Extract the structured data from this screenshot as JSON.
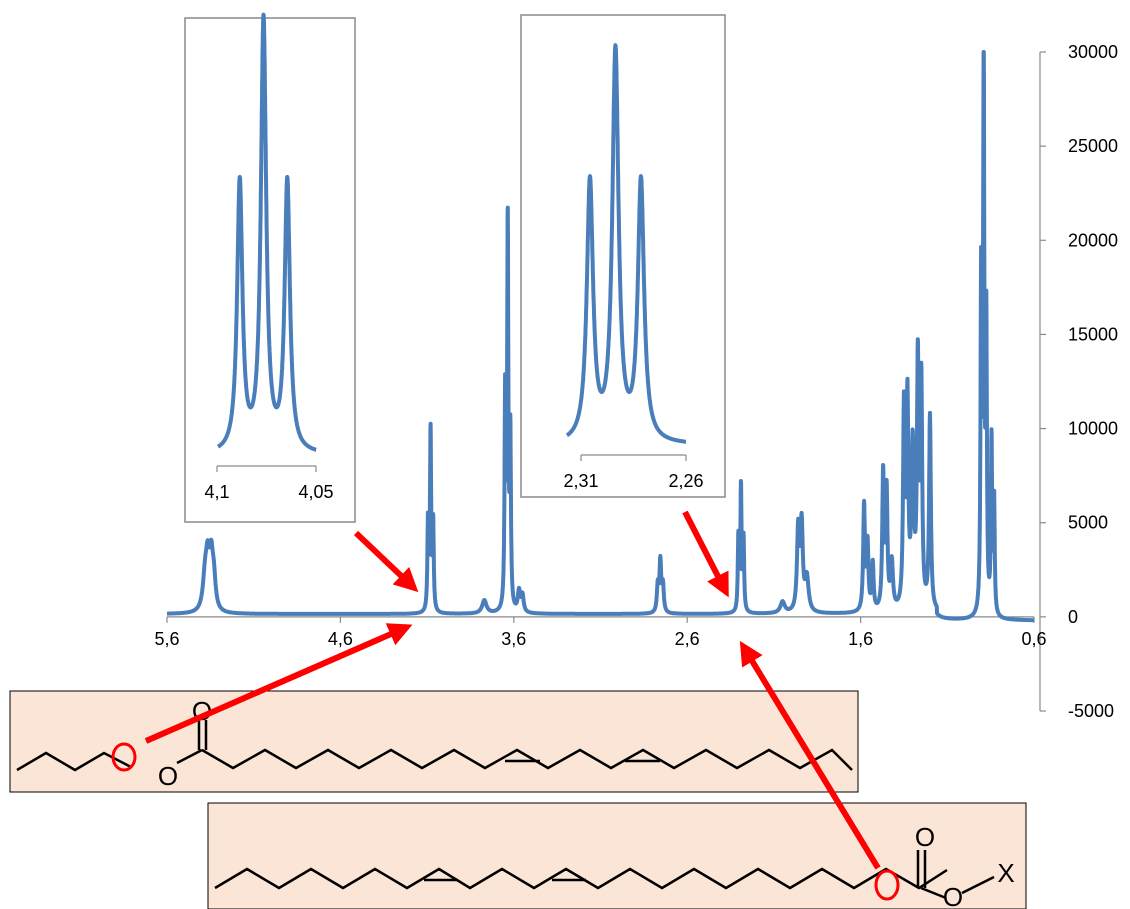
{
  "chart_data": {
    "type": "line",
    "series_color": "#4a7ebb",
    "annotation_color": "#ff0000",
    "structure_box_fill": "#fbe5d6",
    "main": {
      "x_reversed": true,
      "xlim": [
        5.6,
        0.6
      ],
      "ylim": [
        -5000,
        30000
      ],
      "x_ticks": [
        5.6,
        4.6,
        3.6,
        2.6,
        1.6,
        0.6
      ],
      "x_tick_labels": [
        "5,6",
        "4,6",
        "3,6",
        "2,6",
        "1,6",
        "0,6"
      ],
      "y_ticks": [
        -5000,
        0,
        5000,
        10000,
        15000,
        20000,
        25000,
        30000
      ],
      "y_tick_labels": [
        "-5000",
        "0",
        "5000",
        "10000",
        "15000",
        "20000",
        "25000",
        "30000"
      ],
      "y_axis_side": "right",
      "grid": false,
      "baseline": 150,
      "peaks": [
        {
          "x": 5.38,
          "h": 1800,
          "w": 0.015
        },
        {
          "x": 5.365,
          "h": 2200,
          "w": 0.012
        },
        {
          "x": 5.345,
          "h": 2500,
          "w": 0.012
        },
        {
          "x": 5.33,
          "h": 1500,
          "w": 0.012
        },
        {
          "x": 4.095,
          "h": 4700,
          "w": 0.004
        },
        {
          "x": 4.08,
          "h": 9500,
          "w": 0.004
        },
        {
          "x": 4.065,
          "h": 4600,
          "w": 0.004
        },
        {
          "x": 3.77,
          "h": 700,
          "w": 0.015
        },
        {
          "x": 3.65,
          "h": 11200,
          "w": 0.004
        },
        {
          "x": 3.635,
          "h": 20400,
          "w": 0.004
        },
        {
          "x": 3.62,
          "h": 9000,
          "w": 0.004
        },
        {
          "x": 3.57,
          "h": 1100,
          "w": 0.008
        },
        {
          "x": 3.55,
          "h": 900,
          "w": 0.008
        },
        {
          "x": 2.77,
          "h": 1400,
          "w": 0.006
        },
        {
          "x": 2.755,
          "h": 2700,
          "w": 0.006
        },
        {
          "x": 2.74,
          "h": 1400,
          "w": 0.006
        },
        {
          "x": 2.305,
          "h": 3900,
          "w": 0.004
        },
        {
          "x": 2.29,
          "h": 6600,
          "w": 0.004
        },
        {
          "x": 2.275,
          "h": 3800,
          "w": 0.004
        },
        {
          "x": 2.05,
          "h": 600,
          "w": 0.015
        },
        {
          "x": 1.96,
          "h": 4300,
          "w": 0.008
        },
        {
          "x": 1.94,
          "h": 4500,
          "w": 0.008
        },
        {
          "x": 1.91,
          "h": 1800,
          "w": 0.012
        },
        {
          "x": 1.58,
          "h": 5600,
          "w": 0.006
        },
        {
          "x": 1.56,
          "h": 3500,
          "w": 0.006
        },
        {
          "x": 1.53,
          "h": 2500,
          "w": 0.006
        },
        {
          "x": 1.47,
          "h": 7200,
          "w": 0.006
        },
        {
          "x": 1.45,
          "h": 6200,
          "w": 0.006
        },
        {
          "x": 1.42,
          "h": 2500,
          "w": 0.008
        },
        {
          "x": 1.35,
          "h": 10500,
          "w": 0.006
        },
        {
          "x": 1.33,
          "h": 10800,
          "w": 0.006
        },
        {
          "x": 1.3,
          "h": 8500,
          "w": 0.008
        },
        {
          "x": 1.27,
          "h": 12800,
          "w": 0.006
        },
        {
          "x": 1.25,
          "h": 11800,
          "w": 0.006
        },
        {
          "x": 1.2,
          "h": 10300,
          "w": 0.006
        },
        {
          "x": 0.905,
          "h": 17500,
          "w": 0.004
        },
        {
          "x": 0.89,
          "h": 30000,
          "w": 0.004
        },
        {
          "x": 0.875,
          "h": 15000,
          "w": 0.004
        },
        {
          "x": 0.845,
          "h": 9200,
          "w": 0.004
        },
        {
          "x": 0.83,
          "h": 6000,
          "w": 0.004
        }
      ],
      "dip": {
        "from": 1.16,
        "to": 0.55,
        "value": -200
      }
    },
    "inset_1": {
      "x_reversed": true,
      "xlim": [
        4.1,
        4.05
      ],
      "x_tick_labels": [
        "4,1",
        "4,05"
      ],
      "peaks": [
        {
          "x": 4.0885,
          "h": 1.0,
          "w": 0.0016
        },
        {
          "x": 4.0765,
          "h": 1.6,
          "w": 0.0016
        },
        {
          "x": 4.0645,
          "h": 1.0,
          "w": 0.0016
        }
      ]
    },
    "inset_2": {
      "x_reversed": true,
      "xlim": [
        2.32,
        2.25
      ],
      "x_tick_labels": [
        "2,31",
        "2,26"
      ],
      "peaks": [
        {
          "x": 2.3065,
          "h": 1.0,
          "w": 0.0022
        },
        {
          "x": 2.2915,
          "h": 1.5,
          "w": 0.0022
        },
        {
          "x": 2.2765,
          "h": 1.0,
          "w": 0.0022
        }
      ]
    },
    "structure_1": {
      "atoms": [
        "O",
        "O"
      ]
    },
    "structure_2": {
      "atoms": [
        "O",
        "O",
        "X"
      ]
    }
  }
}
